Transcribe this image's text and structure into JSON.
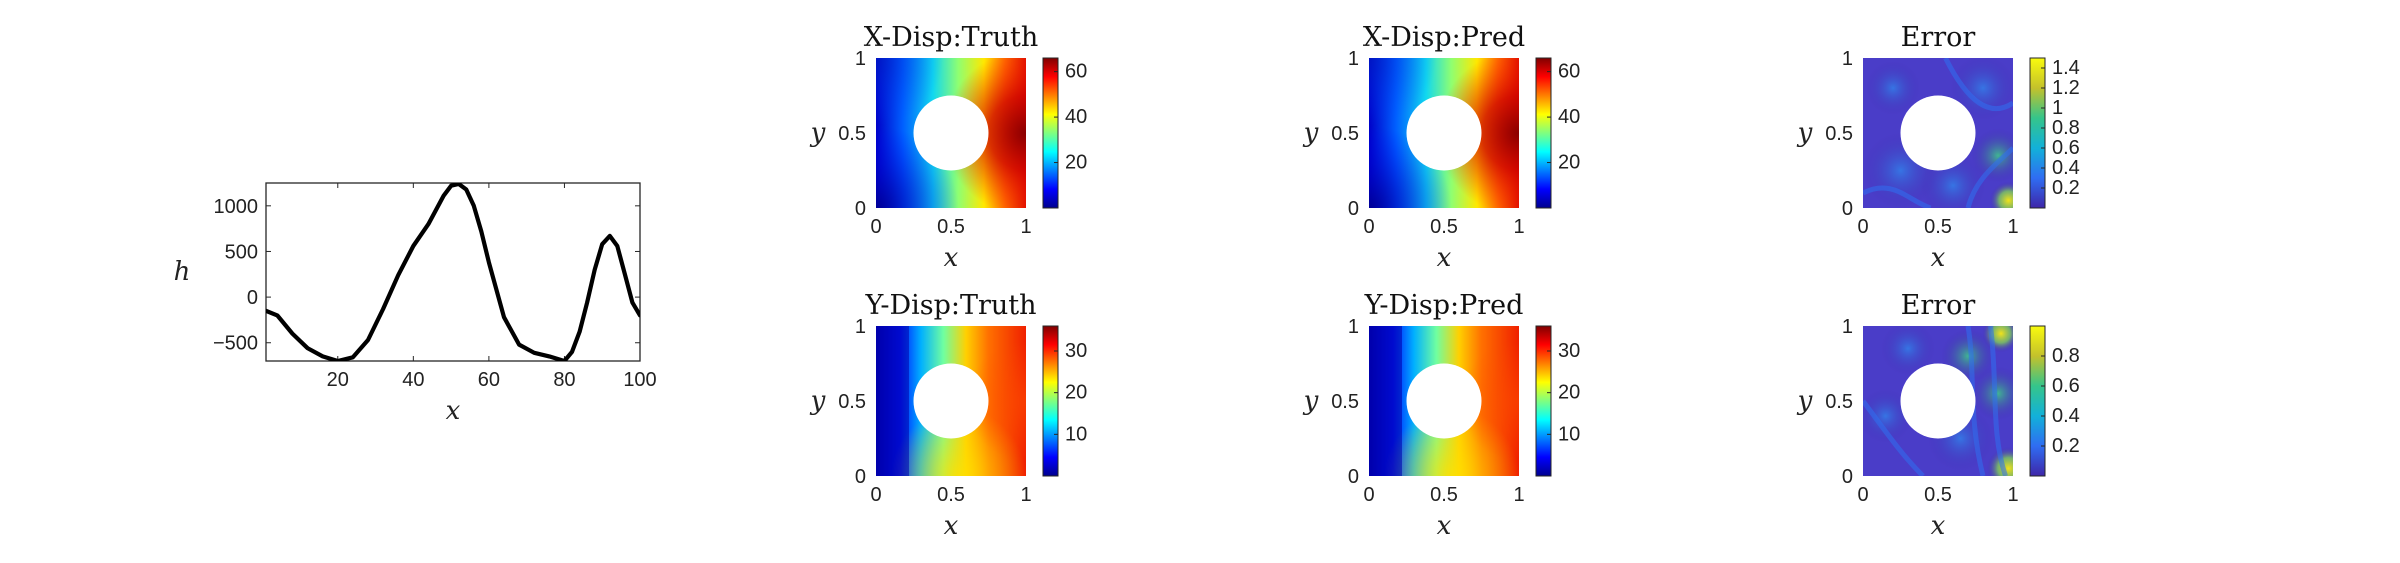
{
  "chart_data": [
    {
      "id": "h-curve",
      "type": "line",
      "title": "",
      "xlabel": "x",
      "ylabel": "h",
      "xlim": [
        1,
        100
      ],
      "ylim": [
        -700,
        1250
      ],
      "xticks": [
        "20",
        "40",
        "60",
        "80",
        "100"
      ],
      "yticks": [
        "-500",
        "0",
        "500",
        "1000"
      ],
      "grid": false,
      "series": [
        {
          "color": "#000000",
          "x": [
            1,
            4,
            8,
            12,
            16,
            20,
            24,
            28,
            32,
            36,
            40,
            44,
            48,
            50,
            52,
            54,
            56,
            58,
            60,
            64,
            68,
            72,
            76,
            80,
            82,
            84,
            86,
            88,
            90,
            92,
            94,
            96,
            98,
            100
          ],
          "y": [
            -150,
            -200,
            -400,
            -560,
            -650,
            -700,
            -660,
            -470,
            -130,
            240,
            560,
            800,
            1110,
            1220,
            1240,
            1180,
            1000,
            720,
            380,
            -220,
            -520,
            -610,
            -650,
            -700,
            -600,
            -380,
            -60,
            300,
            580,
            670,
            560,
            250,
            -60,
            -200
          ]
        }
      ]
    },
    {
      "id": "x-truth",
      "type": "heatmap",
      "title": "X-Disp:Truth",
      "xlabel": "x",
      "ylabel": "y",
      "xlim": [
        0,
        1
      ],
      "ylim": [
        0,
        1
      ],
      "xticks": [
        "0",
        "0.5",
        "1"
      ],
      "yticks": [
        "0",
        "0.5",
        "1"
      ],
      "colormap": "jet",
      "colorbar": {
        "range": [
          0,
          66
        ],
        "ticks": [
          "20",
          "40",
          "60"
        ]
      }
    },
    {
      "id": "x-pred",
      "type": "heatmap",
      "title": "X-Disp:Pred",
      "xlabel": "x",
      "ylabel": "y",
      "xlim": [
        0,
        1
      ],
      "ylim": [
        0,
        1
      ],
      "xticks": [
        "0",
        "0.5",
        "1"
      ],
      "yticks": [
        "0",
        "0.5",
        "1"
      ],
      "colormap": "jet",
      "colorbar": {
        "range": [
          0,
          66
        ],
        "ticks": [
          "20",
          "40",
          "60"
        ]
      }
    },
    {
      "id": "x-error",
      "type": "heatmap",
      "title": "Error",
      "xlabel": "x",
      "ylabel": "y",
      "xlim": [
        0,
        1
      ],
      "ylim": [
        0,
        1
      ],
      "xticks": [
        "0",
        "0.5",
        "1"
      ],
      "yticks": [
        "0",
        "0.5",
        "1"
      ],
      "colormap": "parula",
      "colorbar": {
        "range": [
          0,
          1.5
        ],
        "ticks": [
          "0.2",
          "0.4",
          "0.6",
          "0.8",
          "1",
          "1.2",
          "1.4"
        ]
      }
    },
    {
      "id": "y-truth",
      "type": "heatmap",
      "title": "Y-Disp:Truth",
      "xlabel": "x",
      "ylabel": "y",
      "xlim": [
        0,
        1
      ],
      "ylim": [
        0,
        1
      ],
      "xticks": [
        "0",
        "0.5",
        "1"
      ],
      "yticks": [
        "0",
        "0.5",
        "1"
      ],
      "colormap": "jet",
      "colorbar": {
        "range": [
          0,
          36
        ],
        "ticks": [
          "10",
          "20",
          "30"
        ]
      }
    },
    {
      "id": "y-pred",
      "type": "heatmap",
      "title": "Y-Disp:Pred",
      "xlabel": "x",
      "ylabel": "y",
      "xlim": [
        0,
        1
      ],
      "ylim": [
        0,
        1
      ],
      "xticks": [
        "0",
        "0.5",
        "1"
      ],
      "yticks": [
        "0",
        "0.5",
        "1"
      ],
      "colormap": "jet",
      "colorbar": {
        "range": [
          0,
          36
        ],
        "ticks": [
          "10",
          "20",
          "30"
        ]
      }
    },
    {
      "id": "y-error",
      "type": "heatmap",
      "title": "Error",
      "xlabel": "x",
      "ylabel": "y",
      "xlim": [
        0,
        1
      ],
      "ylim": [
        0,
        1
      ],
      "xticks": [
        "0",
        "0.5",
        "1"
      ],
      "yticks": [
        "0",
        "0.5",
        "1"
      ],
      "colormap": "parula",
      "colorbar": {
        "range": [
          0,
          1.0
        ],
        "ticks": [
          "0.2",
          "0.4",
          "0.6",
          "0.8"
        ]
      }
    }
  ]
}
